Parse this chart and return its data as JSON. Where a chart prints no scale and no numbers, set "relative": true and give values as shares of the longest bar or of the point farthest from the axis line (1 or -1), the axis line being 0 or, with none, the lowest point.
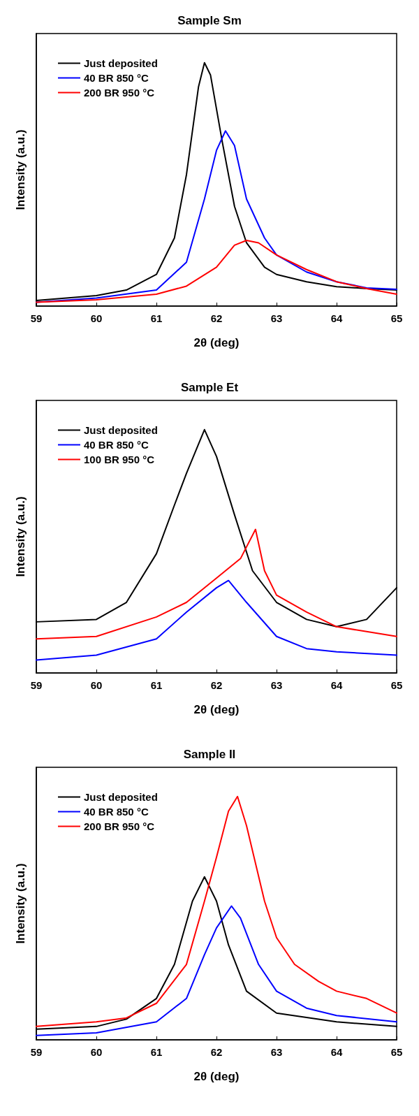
{
  "chart_data": [
    {
      "type": "line",
      "title": "Sample Sm",
      "xlabel": "2θ (deg)",
      "ylabel": "Intensity (a.u.)",
      "relative": true,
      "xlim": [
        59,
        65
      ],
      "xticks": [
        59,
        60,
        61,
        62,
        63,
        64,
        65
      ],
      "legend": "top left",
      "grid": false,
      "marker": "none",
      "line_style": "solid",
      "series": [
        {
          "name": "Just deposited",
          "color": "#000000",
          "x": [
            59,
            60,
            60.5,
            61,
            61.3,
            61.5,
            61.7,
            61.8,
            61.9,
            62.1,
            62.3,
            62.5,
            62.8,
            63,
            63.5,
            64,
            64.5,
            65
          ],
          "values": [
            0.023,
            0.043,
            0.066,
            0.13,
            0.28,
            0.54,
            0.9,
            1,
            0.95,
            0.67,
            0.41,
            0.26,
            0.16,
            0.13,
            0.1,
            0.08,
            0.072,
            0.066
          ]
        },
        {
          "name": "40 BR 850 °C",
          "color": "#0000ff",
          "x": [
            59,
            60,
            61,
            61.5,
            61.8,
            62,
            62.15,
            62.3,
            62.5,
            62.8,
            63,
            63.5,
            64,
            64.5,
            65
          ],
          "values": [
            0.016,
            0.033,
            0.066,
            0.18,
            0.44,
            0.64,
            0.72,
            0.66,
            0.44,
            0.28,
            0.21,
            0.14,
            0.1,
            0.075,
            0.069
          ]
        },
        {
          "name": "200 BR 950 °C",
          "color": "#ff0000",
          "x": [
            59,
            60,
            61,
            61.5,
            62,
            62.3,
            62.5,
            62.7,
            63,
            63.5,
            64,
            64.5,
            65
          ],
          "values": [
            0.016,
            0.026,
            0.049,
            0.082,
            0.16,
            0.25,
            0.27,
            0.26,
            0.21,
            0.15,
            0.1,
            0.072,
            0.049
          ]
        }
      ]
    },
    {
      "type": "line",
      "title": "Sample Et",
      "xlabel": "2θ (deg)",
      "ylabel": "Intensity (a.u.)",
      "relative": true,
      "xlim": [
        59,
        65
      ],
      "xticks": [
        59,
        60,
        61,
        62,
        63,
        64,
        65
      ],
      "legend": "top left",
      "grid": false,
      "marker": "none",
      "line_style": "solid",
      "series": [
        {
          "name": "Just deposited",
          "color": "#000000",
          "x": [
            59,
            60,
            60.5,
            61,
            61.3,
            61.5,
            61.8,
            62,
            62.3,
            62.6,
            63,
            63.5,
            64,
            64.5,
            65
          ],
          "values": [
            0.21,
            0.22,
            0.29,
            0.49,
            0.69,
            0.82,
            1,
            0.89,
            0.65,
            0.42,
            0.29,
            0.22,
            0.19,
            0.22,
            0.35
          ]
        },
        {
          "name": "40 BR 850 °C",
          "color": "#0000ff",
          "x": [
            59,
            60,
            61,
            61.5,
            62,
            62.2,
            62.5,
            63,
            63.5,
            64,
            65
          ],
          "values": [
            0.053,
            0.073,
            0.14,
            0.25,
            0.35,
            0.38,
            0.29,
            0.15,
            0.1,
            0.087,
            0.073
          ]
        },
        {
          "name": "100 BR 950 °C",
          "color": "#ff0000",
          "x": [
            59,
            60,
            61,
            61.5,
            62,
            62.4,
            62.65,
            62.8,
            63,
            63.5,
            64,
            64.5,
            65
          ],
          "values": [
            0.14,
            0.15,
            0.23,
            0.29,
            0.39,
            0.47,
            0.59,
            0.42,
            0.32,
            0.25,
            0.19,
            0.17,
            0.15
          ]
        }
      ]
    },
    {
      "type": "line",
      "title": "Sample Il",
      "xlabel": "2θ (deg)",
      "ylabel": "Intensity (a.u.)",
      "relative": true,
      "xlim": [
        59,
        65
      ],
      "xticks": [
        59,
        60,
        61,
        62,
        63,
        64,
        65
      ],
      "legend": "top left",
      "grid": false,
      "marker": "none",
      "line_style": "solid",
      "series": [
        {
          "name": "Just deposited",
          "color": "#000000",
          "x": [
            59,
            60,
            60.5,
            61,
            61.3,
            61.6,
            61.8,
            62,
            62.2,
            62.5,
            63,
            64,
            65
          ],
          "values": [
            0.044,
            0.055,
            0.085,
            0.17,
            0.31,
            0.57,
            0.67,
            0.57,
            0.39,
            0.2,
            0.11,
            0.074,
            0.055
          ]
        },
        {
          "name": "40 BR 850 °C",
          "color": "#0000ff",
          "x": [
            59,
            60,
            61,
            61.5,
            61.8,
            62,
            62.25,
            62.4,
            62.7,
            63,
            63.5,
            64,
            65
          ],
          "values": [
            0.018,
            0.029,
            0.074,
            0.17,
            0.35,
            0.46,
            0.55,
            0.5,
            0.31,
            0.2,
            0.13,
            0.1,
            0.074
          ]
        },
        {
          "name": "200 BR 950 °C",
          "color": "#ff0000",
          "x": [
            59,
            60,
            60.5,
            61,
            61.5,
            61.8,
            62,
            62.2,
            62.35,
            62.5,
            62.8,
            63,
            63.3,
            63.7,
            64,
            64.5,
            65
          ],
          "values": [
            0.055,
            0.074,
            0.09,
            0.15,
            0.31,
            0.57,
            0.75,
            0.94,
            1,
            0.88,
            0.57,
            0.42,
            0.31,
            0.24,
            0.2,
            0.17,
            0.11
          ]
        }
      ]
    }
  ]
}
